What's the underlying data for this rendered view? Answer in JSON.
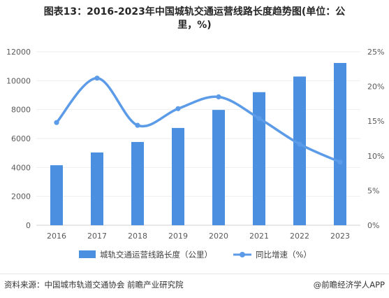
{
  "title_line1": "图表13：2016-2023年中国城轨交通运营线路长度趋势图(单位：公",
  "title_line2": "里，%)",
  "chart_data": {
    "type": "bar",
    "categories": [
      "2016",
      "2017",
      "2018",
      "2019",
      "2020",
      "2021",
      "2022",
      "2023"
    ],
    "series": [
      {
        "name": "城轨交通运营线路长度（公里）",
        "type": "bar",
        "axis": "left",
        "values": [
          4152,
          5033,
          5761,
          6730,
          7978,
          9206,
          10287,
          11224
        ]
      },
      {
        "name": "同比增速（%）",
        "type": "line",
        "axis": "right",
        "values": [
          14.8,
          21.2,
          14.4,
          16.8,
          18.5,
          15.4,
          11.7,
          9.1
        ]
      }
    ],
    "left_axis": {
      "min": 0,
      "max": 12000,
      "ticks": [
        "0",
        "2000",
        "4000",
        "6000",
        "8000",
        "10000",
        "12000"
      ]
    },
    "right_axis": {
      "min": 0,
      "max": 25,
      "ticks": [
        "0%",
        "5%",
        "10%",
        "15%",
        "20%",
        "25%"
      ]
    },
    "legend_position": "bottom",
    "colors": {
      "bar": "#4a8fe0",
      "line": "#5b9be8"
    }
  },
  "footer": {
    "source": "资料来源：中国城市轨道交通协会 前瞻产业研究院",
    "brand": "@前瞻经济学人APP"
  }
}
